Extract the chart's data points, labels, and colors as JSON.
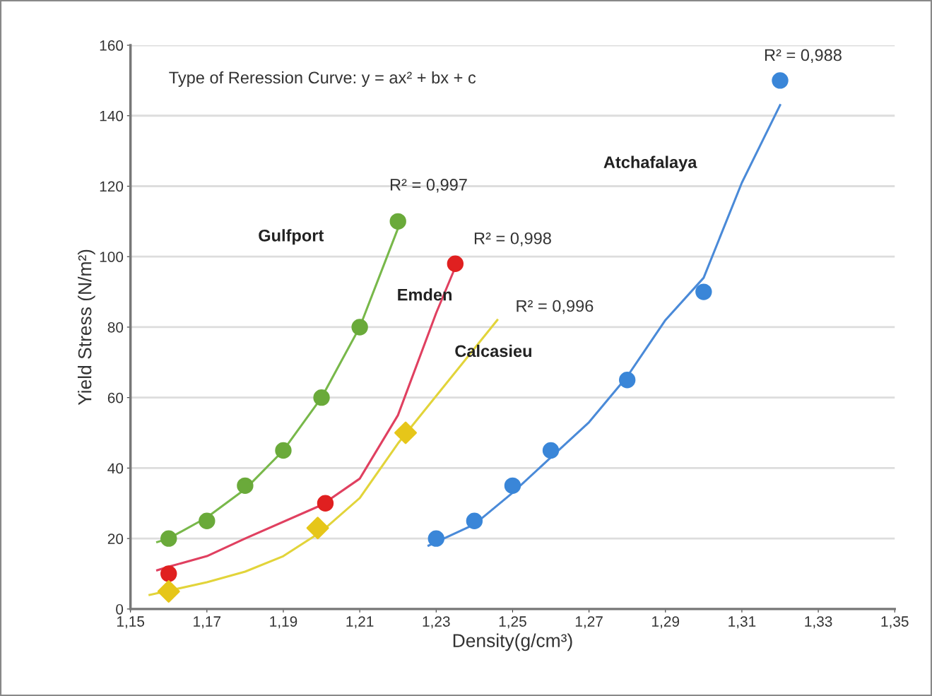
{
  "chart_data": {
    "type": "scatter",
    "xlabel": "Density(g/cm³)",
    "ylabel": "Yield Stress (N/m²)",
    "xlim": [
      1.15,
      1.35
    ],
    "xticks": [
      {
        "value": 1.15,
        "label": "1,15"
      },
      {
        "value": 1.17,
        "label": "1,17"
      },
      {
        "value": 1.19,
        "label": "1,19"
      },
      {
        "value": 1.21,
        "label": "1,21"
      },
      {
        "value": 1.23,
        "label": "1,23"
      },
      {
        "value": 1.25,
        "label": "1,25"
      },
      {
        "value": 1.27,
        "label": "1,27"
      },
      {
        "value": 1.29,
        "label": "1,29"
      },
      {
        "value": 1.31,
        "label": "1,31"
      },
      {
        "value": 1.33,
        "label": "1,33"
      },
      {
        "value": 1.35,
        "label": "1,35"
      }
    ],
    "ylim": [
      0,
      160
    ],
    "yticks": [
      0,
      20,
      40,
      60,
      80,
      100,
      120,
      140,
      160
    ],
    "grid": "y",
    "legend": false,
    "series": [
      {
        "type": "line",
        "color": "#78b84a",
        "marker": "none",
        "x": [
          1.157,
          1.16,
          1.17,
          1.18,
          1.19,
          1.2,
          1.21,
          1.22
        ],
        "values": [
          19,
          20,
          26,
          34,
          45,
          60,
          80,
          108
        ]
      },
      {
        "type": "line",
        "color": "#e04060",
        "marker": "none",
        "x": [
          1.157,
          1.16,
          1.17,
          1.18,
          1.2,
          1.21,
          1.22,
          1.23,
          1.235
        ],
        "values": [
          11,
          12,
          15,
          20,
          29.5,
          37,
          55,
          84,
          97
        ]
      },
      {
        "type": "line",
        "color": "#e2d43a",
        "marker": "none",
        "x": [
          1.155,
          1.17,
          1.18,
          1.19,
          1.2,
          1.21,
          1.22,
          1.246
        ],
        "values": [
          4,
          7.6,
          10.6,
          15,
          22,
          31.5,
          47,
          82
        ]
      },
      {
        "type": "line",
        "color": "#4a8ad8",
        "marker": "none",
        "x": [
          1.228,
          1.24,
          1.25,
          1.26,
          1.27,
          1.28,
          1.29,
          1.3,
          1.31,
          1.32
        ],
        "values": [
          18,
          24,
          33,
          43,
          53,
          66,
          82,
          94,
          121,
          143
        ]
      },
      {
        "color": "#6aaa3a",
        "marker": "circle",
        "x": [
          1.16,
          1.17,
          1.18,
          1.19,
          1.2,
          1.21,
          1.22
        ],
        "values": [
          20,
          25,
          35,
          45,
          60,
          80,
          110
        ]
      },
      {
        "color": "#e02020",
        "marker": "circle",
        "x": [
          1.16,
          1.201,
          1.235
        ],
        "values": [
          10,
          30,
          98
        ]
      },
      {
        "color": "#e6c619",
        "marker": "diamond",
        "x": [
          1.16,
          1.199,
          1.222
        ],
        "values": [
          5,
          23,
          50
        ]
      },
      {
        "color": "#3a86d8",
        "marker": "circle",
        "x": [
          1.23,
          1.24,
          1.25,
          1.26,
          1.28,
          1.3,
          1.32
        ],
        "values": [
          20,
          25,
          35,
          45,
          65,
          90,
          150
        ]
      }
    ],
    "annotations": [
      "Type of Reression Curve: y = ax² + bx + c",
      "Gulfport",
      "Emden",
      "Calcasieu",
      "Atchafalaya",
      "R² = 0,997",
      "R² = 0,998",
      "R² = 0,996",
      "R² = 0,988"
    ]
  }
}
